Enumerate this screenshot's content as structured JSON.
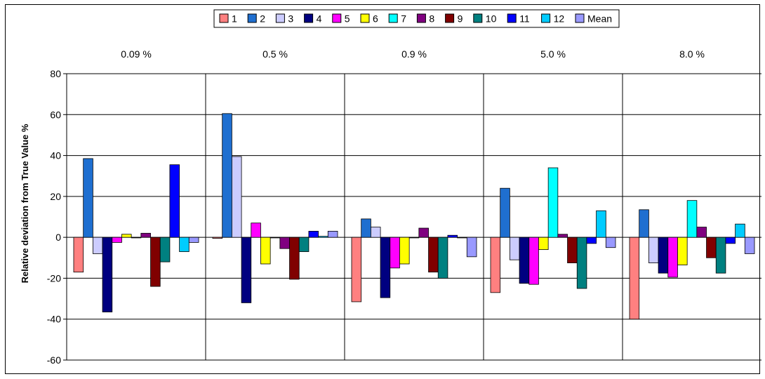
{
  "chart_data": {
    "type": "bar",
    "categories": [
      "0.09 %",
      "0.5 %",
      "0.9 %",
      "5.0 %",
      "8.0 %"
    ],
    "ylabel": "Relative deviation from True Value %",
    "ylim": [
      -60,
      80
    ],
    "yticks": [
      -60,
      -40,
      -20,
      0,
      20,
      40,
      60,
      80
    ],
    "grid": true,
    "legend_position": "top",
    "series": [
      {
        "name": "1",
        "color": "#ff8080",
        "values": [
          -17,
          -0.5,
          -31.5,
          -27,
          -40
        ]
      },
      {
        "name": "2",
        "color": "#1f6fd0",
        "values": [
          38.5,
          60.5,
          9,
          24,
          13.5
        ]
      },
      {
        "name": "3",
        "color": "#ccccff",
        "values": [
          -8,
          39.5,
          5,
          -11,
          -12.5
        ]
      },
      {
        "name": "4",
        "color": "#000080",
        "values": [
          -36.5,
          -32,
          -29.5,
          -22.5,
          -17.5
        ]
      },
      {
        "name": "5",
        "color": "#ff00ff",
        "values": [
          -2.5,
          7,
          -15,
          -23,
          -19.5
        ]
      },
      {
        "name": "6",
        "color": "#ffff00",
        "values": [
          1.5,
          -13,
          -13,
          -6,
          -13.5
        ]
      },
      {
        "name": "7",
        "color": "#00ffff",
        "values": [
          0,
          0,
          0,
          34,
          18
        ]
      },
      {
        "name": "8",
        "color": "#800080",
        "values": [
          2,
          -5.5,
          4.5,
          1.5,
          5
        ]
      },
      {
        "name": "9",
        "color": "#800000",
        "values": [
          -24,
          -20.5,
          -17,
          -12.5,
          -10
        ]
      },
      {
        "name": "10",
        "color": "#008080",
        "values": [
          -12,
          -7,
          -20,
          -25,
          -17.5
        ]
      },
      {
        "name": "11",
        "color": "#0000ff",
        "values": [
          35.5,
          3,
          1,
          -3,
          -3
        ]
      },
      {
        "name": "12",
        "color": "#00ccff",
        "values": [
          -7,
          0.5,
          0,
          13,
          6.5
        ]
      },
      {
        "name": "Mean",
        "color": "#9999ff",
        "values": [
          -2.5,
          3,
          -9.5,
          -5,
          -8
        ]
      }
    ]
  }
}
